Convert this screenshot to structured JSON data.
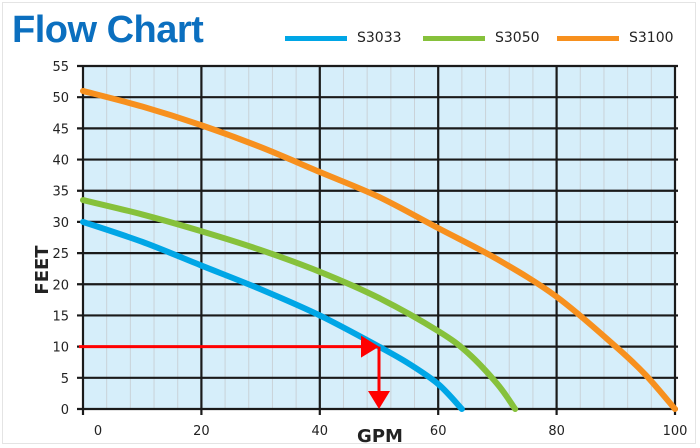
{
  "title": "Flow Chart",
  "colors": {
    "title": "#0b6fbf",
    "plot_bg": "#d6eefa",
    "major_grid": "#1a1a1a",
    "minor_grid": "#c9d2d8",
    "annotation": "#ff0000"
  },
  "legend": [
    {
      "label": "S3033",
      "color": "#00a6e6"
    },
    {
      "label": "S3050",
      "color": "#86c13b"
    },
    {
      "label": "S3100",
      "color": "#f7901e"
    }
  ],
  "chart_data": {
    "type": "line",
    "title": "Flow Chart",
    "xlabel": "GPM",
    "ylabel": "FEET",
    "xlim": [
      0,
      100
    ],
    "ylim": [
      0,
      55
    ],
    "x_ticks": [
      0,
      20,
      40,
      60,
      80,
      100
    ],
    "y_ticks": [
      0,
      5,
      10,
      15,
      20,
      25,
      30,
      35,
      40,
      45,
      50,
      55
    ],
    "grid": true,
    "minor_x_step": 4,
    "legend_position": "top-right",
    "series": [
      {
        "name": "S3033",
        "color": "#00a6e6",
        "points": [
          [
            0,
            30
          ],
          [
            10,
            26.8
          ],
          [
            20,
            23
          ],
          [
            30,
            19.2
          ],
          [
            40,
            15
          ],
          [
            50,
            10
          ],
          [
            55,
            7.3
          ],
          [
            60,
            4
          ],
          [
            64,
            0
          ]
        ]
      },
      {
        "name": "S3050",
        "color": "#86c13b",
        "points": [
          [
            0,
            33.5
          ],
          [
            10,
            31.2
          ],
          [
            20,
            28.5
          ],
          [
            30,
            25.5
          ],
          [
            40,
            22
          ],
          [
            50,
            17.8
          ],
          [
            60,
            12.5
          ],
          [
            65,
            9
          ],
          [
            70,
            4
          ],
          [
            73,
            0
          ]
        ]
      },
      {
        "name": "S3100",
        "color": "#f7901e",
        "points": [
          [
            0,
            51
          ],
          [
            10,
            48.5
          ],
          [
            20,
            45.5
          ],
          [
            30,
            42
          ],
          [
            40,
            38
          ],
          [
            50,
            34
          ],
          [
            60,
            29
          ],
          [
            70,
            24
          ],
          [
            80,
            18
          ],
          [
            90,
            10
          ],
          [
            95,
            5.5
          ],
          [
            100,
            0
          ]
        ]
      }
    ],
    "annotations": [
      {
        "type": "arrow",
        "from": [
          0,
          10
        ],
        "to": [
          50,
          10
        ],
        "color": "#ff0000",
        "description": "horizontal read line at 10 ft"
      },
      {
        "type": "arrow",
        "from": [
          50,
          10
        ],
        "to": [
          50,
          0
        ],
        "color": "#ff0000",
        "description": "vertical drop to 50 GPM"
      }
    ]
  }
}
